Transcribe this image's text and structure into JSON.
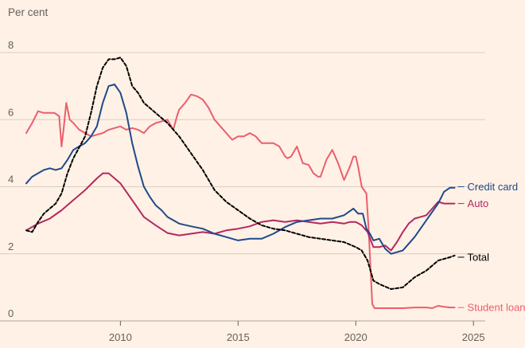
{
  "chart_data": {
    "type": "line",
    "title": "",
    "ylabel": "Per cent",
    "xlabel": "",
    "xlim": [
      2006.0,
      2025.5
    ],
    "ylim": [
      0,
      8
    ],
    "xticks": [
      2010,
      2015,
      2020,
      2025
    ],
    "yticks": [
      0,
      2,
      4,
      6,
      8
    ],
    "grid": "horizontal",
    "series": [
      {
        "name": "Student loan",
        "color": "#eb5e6e",
        "dash": "solid",
        "points": [
          [
            2006.0,
            5.6
          ],
          [
            2006.25,
            5.9
          ],
          [
            2006.5,
            6.25
          ],
          [
            2006.75,
            6.2
          ],
          [
            2007.0,
            6.2
          ],
          [
            2007.2,
            6.2
          ],
          [
            2007.4,
            6.1
          ],
          [
            2007.5,
            5.2
          ],
          [
            2007.6,
            5.8
          ],
          [
            2007.7,
            6.5
          ],
          [
            2007.85,
            6.0
          ],
          [
            2008.0,
            5.9
          ],
          [
            2008.25,
            5.7
          ],
          [
            2008.5,
            5.6
          ],
          [
            2008.75,
            5.5
          ],
          [
            2009.0,
            5.55
          ],
          [
            2009.25,
            5.6
          ],
          [
            2009.5,
            5.7
          ],
          [
            2009.75,
            5.75
          ],
          [
            2010.0,
            5.8
          ],
          [
            2010.25,
            5.7
          ],
          [
            2010.5,
            5.75
          ],
          [
            2010.75,
            5.7
          ],
          [
            2011.0,
            5.6
          ],
          [
            2011.25,
            5.8
          ],
          [
            2011.5,
            5.9
          ],
          [
            2011.75,
            5.95
          ],
          [
            2012.0,
            6.0
          ],
          [
            2012.25,
            5.7
          ],
          [
            2012.4,
            6.1
          ],
          [
            2012.5,
            6.3
          ],
          [
            2012.75,
            6.5
          ],
          [
            2013.0,
            6.75
          ],
          [
            2013.25,
            6.7
          ],
          [
            2013.5,
            6.6
          ],
          [
            2013.75,
            6.35
          ],
          [
            2014.0,
            6.0
          ],
          [
            2014.25,
            5.8
          ],
          [
            2014.5,
            5.6
          ],
          [
            2014.75,
            5.4
          ],
          [
            2015.0,
            5.5
          ],
          [
            2015.25,
            5.5
          ],
          [
            2015.5,
            5.6
          ],
          [
            2015.75,
            5.5
          ],
          [
            2016.0,
            5.3
          ],
          [
            2016.25,
            5.3
          ],
          [
            2016.5,
            5.3
          ],
          [
            2016.75,
            5.2
          ],
          [
            2017.0,
            4.9
          ],
          [
            2017.1,
            4.85
          ],
          [
            2017.25,
            4.9
          ],
          [
            2017.5,
            5.2
          ],
          [
            2017.75,
            4.7
          ],
          [
            2018.0,
            4.65
          ],
          [
            2018.2,
            4.4
          ],
          [
            2018.4,
            4.3
          ],
          [
            2018.5,
            4.3
          ],
          [
            2018.75,
            4.8
          ],
          [
            2019.0,
            5.1
          ],
          [
            2019.25,
            4.7
          ],
          [
            2019.5,
            4.2
          ],
          [
            2019.75,
            4.6
          ],
          [
            2019.9,
            4.9
          ],
          [
            2020.0,
            4.9
          ],
          [
            2020.1,
            4.6
          ],
          [
            2020.25,
            4.0
          ],
          [
            2020.45,
            3.8
          ],
          [
            2020.55,
            2.7
          ],
          [
            2020.7,
            0.5
          ],
          [
            2020.8,
            0.38
          ],
          [
            2021.0,
            0.38
          ],
          [
            2021.5,
            0.38
          ],
          [
            2022.0,
            0.38
          ],
          [
            2022.5,
            0.4
          ],
          [
            2023.0,
            0.4
          ],
          [
            2023.25,
            0.38
          ],
          [
            2023.5,
            0.45
          ],
          [
            2023.75,
            0.42
          ],
          [
            2024.0,
            0.4
          ],
          [
            2024.2,
            0.4
          ]
        ]
      },
      {
        "name": "Auto",
        "color": "#b3295f",
        "dash": "solid",
        "points": [
          [
            2006.0,
            2.7
          ],
          [
            2006.5,
            2.9
          ],
          [
            2007.0,
            3.05
          ],
          [
            2007.5,
            3.3
          ],
          [
            2008.0,
            3.6
          ],
          [
            2008.5,
            3.9
          ],
          [
            2009.0,
            4.25
          ],
          [
            2009.25,
            4.4
          ],
          [
            2009.5,
            4.4
          ],
          [
            2010.0,
            4.1
          ],
          [
            2010.5,
            3.6
          ],
          [
            2011.0,
            3.1
          ],
          [
            2011.5,
            2.85
          ],
          [
            2012.0,
            2.62
          ],
          [
            2012.5,
            2.55
          ],
          [
            2013.0,
            2.6
          ],
          [
            2013.5,
            2.65
          ],
          [
            2014.0,
            2.6
          ],
          [
            2014.5,
            2.7
          ],
          [
            2015.0,
            2.75
          ],
          [
            2015.5,
            2.82
          ],
          [
            2016.0,
            2.95
          ],
          [
            2016.5,
            3.0
          ],
          [
            2017.0,
            2.95
          ],
          [
            2017.5,
            3.0
          ],
          [
            2018.0,
            2.95
          ],
          [
            2018.5,
            2.9
          ],
          [
            2019.0,
            2.95
          ],
          [
            2019.5,
            2.9
          ],
          [
            2019.75,
            2.95
          ],
          [
            2020.0,
            2.95
          ],
          [
            2020.25,
            2.85
          ],
          [
            2020.5,
            2.65
          ],
          [
            2020.75,
            2.2
          ],
          [
            2021.0,
            2.2
          ],
          [
            2021.25,
            2.25
          ],
          [
            2021.5,
            2.1
          ],
          [
            2021.75,
            2.35
          ],
          [
            2022.0,
            2.65
          ],
          [
            2022.25,
            2.9
          ],
          [
            2022.5,
            3.05
          ],
          [
            2022.75,
            3.1
          ],
          [
            2023.0,
            3.15
          ],
          [
            2023.25,
            3.35
          ],
          [
            2023.5,
            3.55
          ],
          [
            2023.75,
            3.5
          ],
          [
            2024.0,
            3.5
          ],
          [
            2024.2,
            3.5
          ]
        ]
      },
      {
        "name": "Credit card",
        "color": "#1e4a8c",
        "dash": "solid",
        "points": [
          [
            2006.0,
            4.1
          ],
          [
            2006.25,
            4.3
          ],
          [
            2006.5,
            4.4
          ],
          [
            2006.75,
            4.5
          ],
          [
            2007.0,
            4.55
          ],
          [
            2007.25,
            4.5
          ],
          [
            2007.5,
            4.55
          ],
          [
            2007.75,
            4.8
          ],
          [
            2008.0,
            5.1
          ],
          [
            2008.25,
            5.2
          ],
          [
            2008.5,
            5.3
          ],
          [
            2008.75,
            5.5
          ],
          [
            2009.0,
            5.8
          ],
          [
            2009.25,
            6.5
          ],
          [
            2009.5,
            7.0
          ],
          [
            2009.75,
            7.05
          ],
          [
            2010.0,
            6.8
          ],
          [
            2010.25,
            6.2
          ],
          [
            2010.5,
            5.3
          ],
          [
            2010.75,
            4.6
          ],
          [
            2011.0,
            4.0
          ],
          [
            2011.25,
            3.7
          ],
          [
            2011.5,
            3.45
          ],
          [
            2011.75,
            3.3
          ],
          [
            2012.0,
            3.1
          ],
          [
            2012.5,
            2.9
          ],
          [
            2013.0,
            2.82
          ],
          [
            2013.5,
            2.75
          ],
          [
            2014.0,
            2.6
          ],
          [
            2014.5,
            2.5
          ],
          [
            2015.0,
            2.4
          ],
          [
            2015.5,
            2.45
          ],
          [
            2016.0,
            2.45
          ],
          [
            2016.5,
            2.6
          ],
          [
            2017.0,
            2.8
          ],
          [
            2017.5,
            2.95
          ],
          [
            2018.0,
            3.0
          ],
          [
            2018.5,
            3.05
          ],
          [
            2019.0,
            3.05
          ],
          [
            2019.5,
            3.15
          ],
          [
            2019.9,
            3.35
          ],
          [
            2020.1,
            3.2
          ],
          [
            2020.3,
            3.2
          ],
          [
            2020.45,
            2.75
          ],
          [
            2020.6,
            2.6
          ],
          [
            2020.75,
            2.4
          ],
          [
            2021.0,
            2.45
          ],
          [
            2021.25,
            2.15
          ],
          [
            2021.5,
            2.0
          ],
          [
            2022.0,
            2.1
          ],
          [
            2022.5,
            2.5
          ],
          [
            2023.0,
            3.0
          ],
          [
            2023.5,
            3.5
          ],
          [
            2023.75,
            3.85
          ],
          [
            2024.0,
            3.97
          ],
          [
            2024.2,
            3.97
          ]
        ]
      },
      {
        "name": "Total",
        "color": "#000000",
        "dash": "dashed",
        "points": [
          [
            2006.0,
            2.7
          ],
          [
            2006.25,
            2.65
          ],
          [
            2006.5,
            2.95
          ],
          [
            2006.75,
            3.2
          ],
          [
            2007.0,
            3.35
          ],
          [
            2007.25,
            3.5
          ],
          [
            2007.5,
            3.8
          ],
          [
            2007.75,
            4.4
          ],
          [
            2008.0,
            4.85
          ],
          [
            2008.5,
            5.5
          ],
          [
            2008.75,
            6.2
          ],
          [
            2009.0,
            7.0
          ],
          [
            2009.25,
            7.55
          ],
          [
            2009.5,
            7.8
          ],
          [
            2009.75,
            7.8
          ],
          [
            2010.0,
            7.85
          ],
          [
            2010.25,
            7.6
          ],
          [
            2010.5,
            7.0
          ],
          [
            2010.75,
            6.8
          ],
          [
            2011.0,
            6.5
          ],
          [
            2011.5,
            6.2
          ],
          [
            2012.0,
            5.9
          ],
          [
            2012.5,
            5.5
          ],
          [
            2013.0,
            5.0
          ],
          [
            2013.5,
            4.5
          ],
          [
            2014.0,
            3.9
          ],
          [
            2014.5,
            3.55
          ],
          [
            2015.0,
            3.3
          ],
          [
            2015.5,
            3.05
          ],
          [
            2016.0,
            2.85
          ],
          [
            2016.5,
            2.75
          ],
          [
            2017.0,
            2.7
          ],
          [
            2017.5,
            2.6
          ],
          [
            2018.0,
            2.5
          ],
          [
            2018.5,
            2.45
          ],
          [
            2019.0,
            2.4
          ],
          [
            2019.5,
            2.35
          ],
          [
            2020.0,
            2.2
          ],
          [
            2020.25,
            2.1
          ],
          [
            2020.5,
            1.8
          ],
          [
            2020.75,
            1.2
          ],
          [
            2021.0,
            1.1
          ],
          [
            2021.5,
            0.95
          ],
          [
            2022.0,
            1.0
          ],
          [
            2022.5,
            1.3
          ],
          [
            2023.0,
            1.5
          ],
          [
            2023.5,
            1.8
          ],
          [
            2024.0,
            1.9
          ],
          [
            2024.2,
            1.95
          ]
        ]
      }
    ],
    "end_labels": [
      {
        "name": "Credit card",
        "text": "Credit card",
        "color": "#1e4a8c",
        "value": 4.0
      },
      {
        "name": "Auto",
        "text": "Auto",
        "color": "#b3295f",
        "value": 3.5
      },
      {
        "name": "Total",
        "text": "Total",
        "color": "#000000",
        "value": 1.9
      },
      {
        "name": "Student loan",
        "text": "Student loan",
        "color": "#eb5e6e",
        "value": 0.4
      }
    ]
  }
}
